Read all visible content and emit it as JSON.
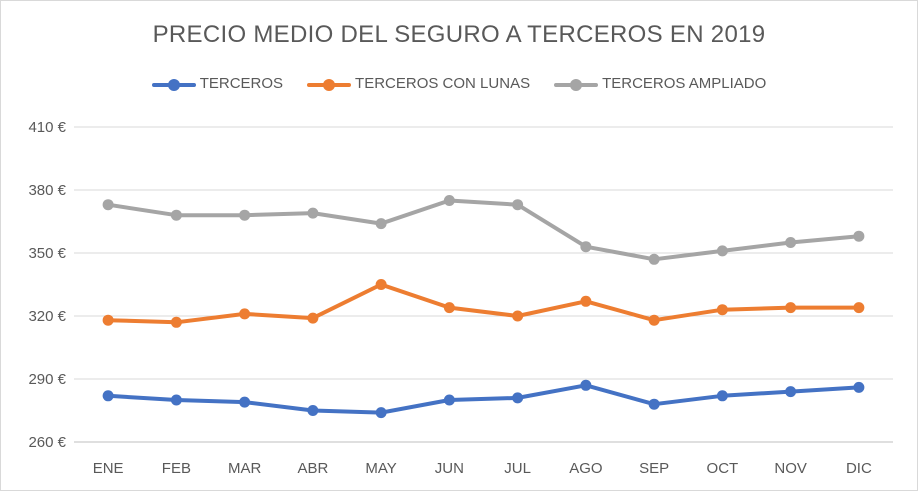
{
  "chart_data": {
    "type": "line",
    "title": "PRECIO MEDIO DEL SEGURO A TERCEROS EN 2019",
    "categories": [
      "ENE",
      "FEB",
      "MAR",
      "ABR",
      "MAY",
      "JUN",
      "JUL",
      "AGO",
      "SEP",
      "OCT",
      "NOV",
      "DIC"
    ],
    "series": [
      {
        "name": "TERCEROS",
        "color": "#4472c4",
        "values": [
          282,
          280,
          279,
          275,
          274,
          280,
          281,
          287,
          278,
          282,
          284,
          286
        ]
      },
      {
        "name": "TERCEROS CON LUNAS",
        "color": "#ed7d31",
        "values": [
          318,
          317,
          321,
          319,
          335,
          324,
          320,
          327,
          318,
          323,
          324,
          324
        ]
      },
      {
        "name": "TERCEROS AMPLIADO",
        "color": "#a5a5a5",
        "values": [
          373,
          368,
          368,
          369,
          364,
          375,
          373,
          353,
          347,
          351,
          355,
          358
        ]
      }
    ],
    "y_ticks": [
      260,
      290,
      320,
      350,
      380,
      410
    ],
    "y_tick_labels": [
      "260 €",
      "290 €",
      "320 €",
      "350 €",
      "380 €",
      "410 €"
    ],
    "ylim": [
      260,
      410
    ],
    "grid": true,
    "legend_position": "top"
  }
}
